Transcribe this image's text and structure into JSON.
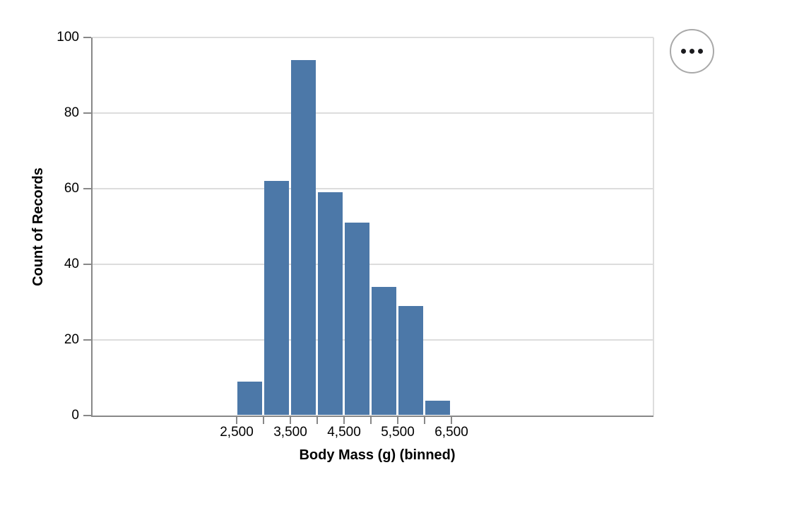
{
  "chart_data": {
    "type": "bar",
    "subtype": "histogram",
    "title": "",
    "xlabel": "Body Mass (g) (binned)",
    "ylabel": "Count of Records",
    "ylim": [
      0,
      100
    ],
    "grid": true,
    "legend": "none",
    "bin_step": 500,
    "bins": [
      {
        "x0": 2500,
        "x1": 3000,
        "count": 9
      },
      {
        "x0": 3000,
        "x1": 3500,
        "count": 62
      },
      {
        "x0": 3500,
        "x1": 4000,
        "count": 94
      },
      {
        "x0": 4000,
        "x1": 4500,
        "count": 59
      },
      {
        "x0": 4500,
        "x1": 5000,
        "count": 51
      },
      {
        "x0": 5000,
        "x1": 5500,
        "count": 34
      },
      {
        "x0": 5500,
        "x1": 6000,
        "count": 29
      },
      {
        "x0": 6000,
        "x1": 6500,
        "count": 4
      }
    ],
    "y_ticks": [
      {
        "value": 0,
        "label": "0"
      },
      {
        "value": 20,
        "label": "20"
      },
      {
        "value": 40,
        "label": "40"
      },
      {
        "value": 60,
        "label": "60"
      },
      {
        "value": 80,
        "label": "80"
      },
      {
        "value": 100,
        "label": "100"
      }
    ],
    "x_ticks": [
      {
        "value": 2500,
        "label": "2,500"
      },
      {
        "value": 3000,
        "label": ""
      },
      {
        "value": 3500,
        "label": "3,500"
      },
      {
        "value": 4000,
        "label": ""
      },
      {
        "value": 4500,
        "label": "4,500"
      },
      {
        "value": 5000,
        "label": ""
      },
      {
        "value": 5500,
        "label": "5,500"
      },
      {
        "value": 6000,
        "label": ""
      },
      {
        "value": 6500,
        "label": "6,500"
      }
    ],
    "colors": {
      "bar": "#4c78a8",
      "grid": "#dddddd",
      "axis": "#888888",
      "label": "#000000"
    }
  },
  "actions_menu": {
    "icon": "ellipsis",
    "dot_count": 3
  }
}
